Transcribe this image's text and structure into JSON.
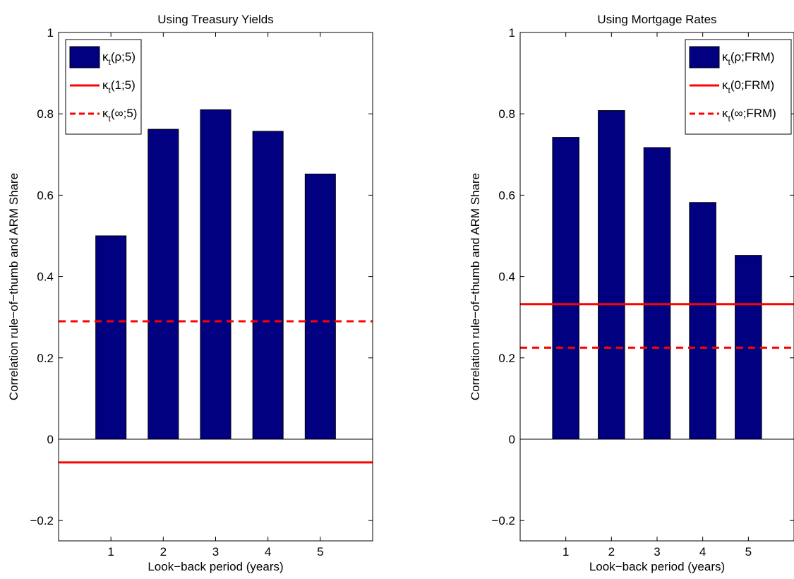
{
  "chart_data": [
    {
      "type": "bar",
      "title": "Using Treasury Yields",
      "xlabel": "Look−back period (years)",
      "ylabel": "Correlation rule−of−thumb and ARM Share",
      "categories": [
        "1",
        "2",
        "3",
        "4",
        "5"
      ],
      "x": [
        1,
        2,
        3,
        4,
        5
      ],
      "xlim": [
        0,
        6
      ],
      "ylim": [
        -0.25,
        1
      ],
      "yticks": [
        -0.2,
        0,
        0.2,
        0.4,
        0.6,
        0.8,
        1
      ],
      "ytick_labels": [
        "−0.2",
        "0",
        "0.2",
        "0.4",
        "0.6",
        "0.8",
        "1"
      ],
      "grid": false,
      "legend_position": "top-left",
      "bar_color": "#000080",
      "line_color": "#ff0000",
      "series": [
        {
          "kind": "bar",
          "name": "κ",
          "sub": "t",
          "suffix": "(ρ;5)",
          "values": [
            0.5,
            0.762,
            0.81,
            0.757,
            0.652
          ]
        },
        {
          "kind": "hline",
          "style": "solid",
          "name": "κ",
          "sub": "t",
          "suffix": "(1;5)",
          "value": -0.057
        },
        {
          "kind": "hline",
          "style": "dashed",
          "name": "κ",
          "sub": "t",
          "suffix": "(∞;5)",
          "value": 0.29
        }
      ]
    },
    {
      "type": "bar",
      "title": "Using Mortgage Rates",
      "xlabel": "Look−back period (years)",
      "ylabel": "Correlation rule−of−thumb and ARM Share",
      "categories": [
        "1",
        "2",
        "3",
        "4",
        "5"
      ],
      "x": [
        1,
        2,
        3,
        4,
        5
      ],
      "xlim": [
        0,
        6
      ],
      "ylim": [
        -0.25,
        1
      ],
      "yticks": [
        -0.2,
        0,
        0.2,
        0.4,
        0.6,
        0.8,
        1
      ],
      "ytick_labels": [
        "−0.2",
        "0",
        "0.2",
        "0.4",
        "0.6",
        "0.8",
        "1"
      ],
      "grid": false,
      "legend_position": "top-right",
      "bar_color": "#000080",
      "line_color": "#ff0000",
      "series": [
        {
          "kind": "bar",
          "name": "κ",
          "sub": "t",
          "suffix": "(ρ;FRM)",
          "values": [
            0.742,
            0.808,
            0.717,
            0.582,
            0.452
          ]
        },
        {
          "kind": "hline",
          "style": "solid",
          "name": "κ",
          "sub": "t",
          "suffix": "(0;FRM)",
          "value": 0.332
        },
        {
          "kind": "hline",
          "style": "dashed",
          "name": "κ",
          "sub": "t",
          "suffix": "(∞;FRM)",
          "value": 0.225
        }
      ]
    }
  ]
}
